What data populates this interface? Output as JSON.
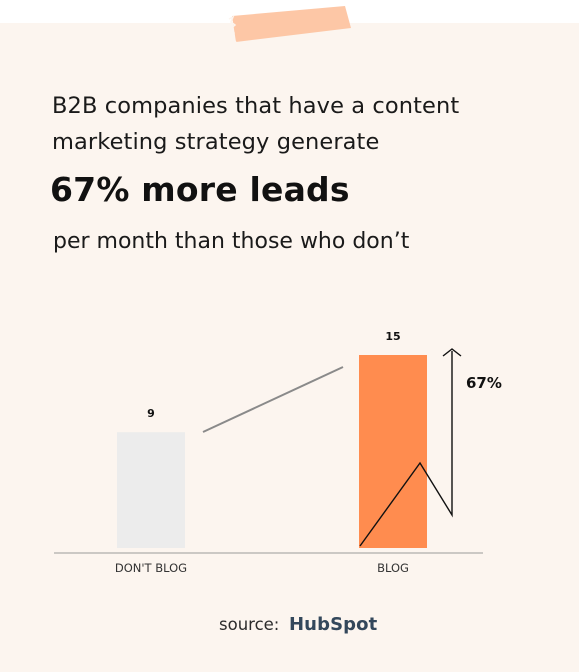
{
  "headline": "B2B companies that have a content marketing strategy generate",
  "highlight": "67% more leads",
  "subline": "per month than those who don’t",
  "chart_data": {
    "type": "bar",
    "categories": [
      "DON'T BLOG",
      "BLOG"
    ],
    "values": [
      9,
      15
    ],
    "value_labels": [
      "9",
      "15"
    ],
    "ylim": [
      0,
      15
    ],
    "grid": false,
    "colors": [
      "#ececec",
      "#ff8c4f"
    ],
    "annotation": "67%"
  },
  "source": {
    "label": "source:",
    "brand": "HubSpot"
  }
}
